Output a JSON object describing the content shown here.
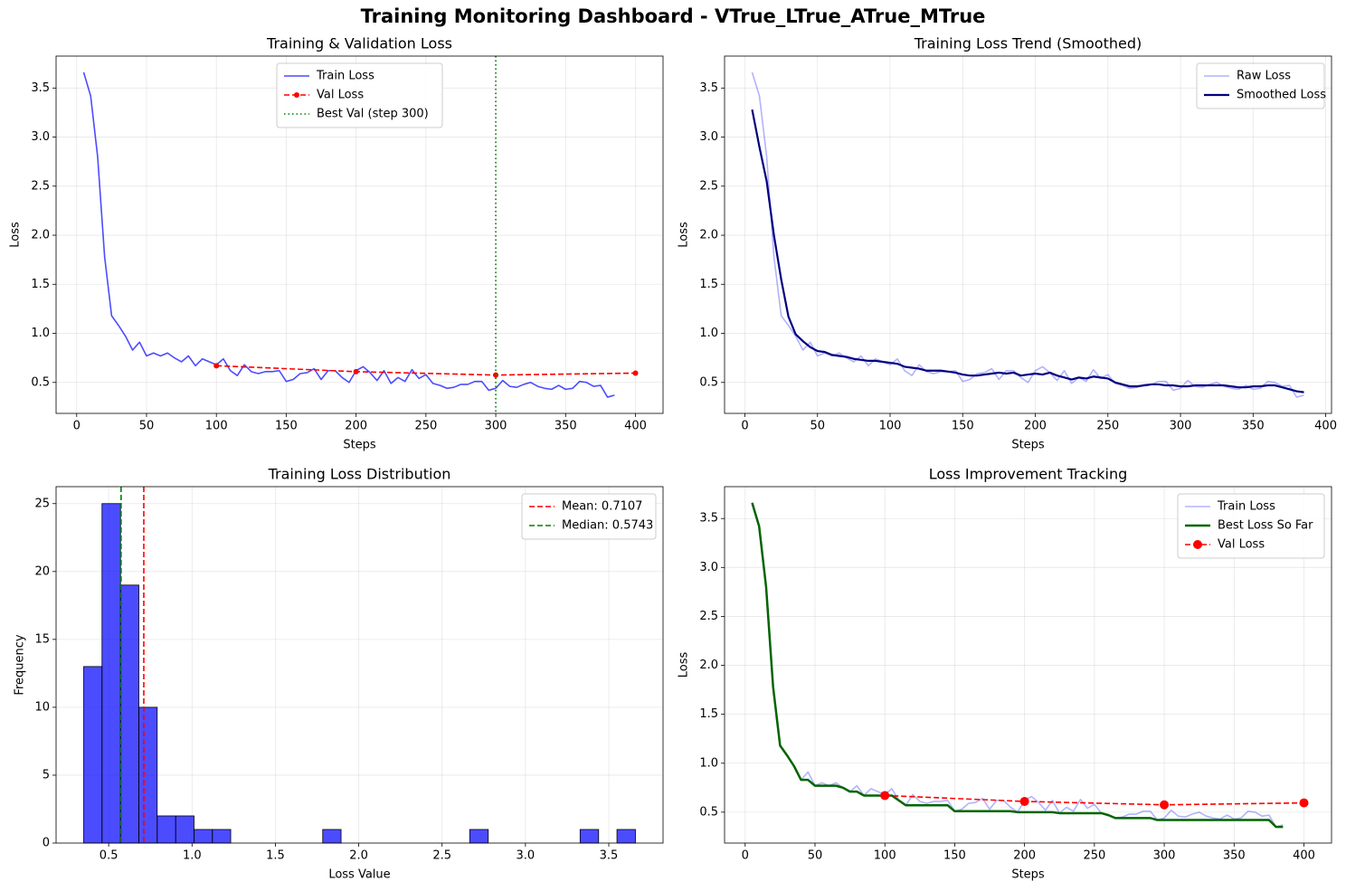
{
  "title": "Training Monitoring Dashboard - VTrue_LTrue_ATrue_MTrue",
  "chart_data": [
    {
      "type": "line",
      "title": "Training & Validation Loss",
      "xlabel": "Steps",
      "ylabel": "Loss",
      "x": [
        5,
        10,
        15,
        20,
        25,
        30,
        35,
        40,
        45,
        50,
        55,
        60,
        65,
        70,
        75,
        80,
        85,
        90,
        95,
        100,
        105,
        110,
        115,
        120,
        125,
        130,
        135,
        140,
        145,
        150,
        155,
        160,
        165,
        170,
        175,
        180,
        185,
        190,
        195,
        200,
        205,
        210,
        215,
        220,
        225,
        230,
        235,
        240,
        245,
        250,
        255,
        260,
        265,
        270,
        275,
        280,
        285,
        290,
        295,
        300,
        305,
        310,
        315,
        320,
        325,
        330,
        335,
        340,
        345,
        350,
        355,
        360,
        365,
        370,
        375,
        380,
        385
      ],
      "series": [
        {
          "name": "Train Loss",
          "color": "#0000ff",
          "alpha": 0.7,
          "style": "solid",
          "values": [
            3.66,
            3.42,
            2.8,
            1.78,
            1.18,
            1.08,
            0.97,
            0.83,
            0.91,
            0.77,
            0.8,
            0.77,
            0.8,
            0.75,
            0.71,
            0.77,
            0.67,
            0.74,
            0.71,
            0.68,
            0.74,
            0.62,
            0.57,
            0.68,
            0.61,
            0.59,
            0.61,
            0.61,
            0.62,
            0.51,
            0.53,
            0.59,
            0.6,
            0.64,
            0.53,
            0.62,
            0.62,
            0.55,
            0.5,
            0.62,
            0.66,
            0.6,
            0.52,
            0.62,
            0.49,
            0.55,
            0.51,
            0.63,
            0.54,
            0.58,
            0.49,
            0.47,
            0.44,
            0.45,
            0.48,
            0.48,
            0.51,
            0.51,
            0.42,
            0.44,
            0.52,
            0.46,
            0.45,
            0.48,
            0.5,
            0.46,
            0.44,
            0.43,
            0.47,
            0.43,
            0.44,
            0.51,
            0.5,
            0.46,
            0.47,
            0.35,
            0.37
          ]
        },
        {
          "name": "Val Loss",
          "color": "#ff0000",
          "style": "dashed",
          "marker": "o",
          "marker_size": 3,
          "x": [
            100,
            200,
            300,
            400
          ],
          "values": [
            0.67,
            0.61,
            0.575,
            0.595
          ]
        }
      ],
      "vlines": [
        {
          "value": 300,
          "label": "Best Val (step 300)",
          "color": "#008000",
          "style": "dotted"
        }
      ],
      "xlim": [
        -14.75,
        419.75
      ],
      "xticks": [
        0,
        50,
        100,
        150,
        200,
        250,
        300,
        350,
        400
      ],
      "ylim": [
        0.1845,
        3.8255
      ],
      "yticks": [
        0.5,
        {
          "value": 1,
          "label": "1.0"
        },
        1.5,
        {
          "value": 2,
          "label": "2.0"
        },
        2.5,
        {
          "value": 3,
          "label": "3.0"
        },
        3.5
      ],
      "grid": true,
      "legend": "upper center"
    },
    {
      "type": "line",
      "title": "Training Loss Trend (Smoothed)",
      "xlabel": "Steps",
      "ylabel": "Loss",
      "x": [
        5,
        10,
        15,
        20,
        25,
        30,
        35,
        40,
        45,
        50,
        55,
        60,
        65,
        70,
        75,
        80,
        85,
        90,
        95,
        100,
        105,
        110,
        115,
        120,
        125,
        130,
        135,
        140,
        145,
        150,
        155,
        160,
        165,
        170,
        175,
        180,
        185,
        190,
        195,
        200,
        205,
        210,
        215,
        220,
        225,
        230,
        235,
        240,
        245,
        250,
        255,
        260,
        265,
        270,
        275,
        280,
        285,
        290,
        295,
        300,
        305,
        310,
        315,
        320,
        325,
        330,
        335,
        340,
        345,
        350,
        355,
        360,
        365,
        370,
        375,
        380,
        385
      ],
      "series": [
        {
          "name": "Raw Loss",
          "color": "#0000ff",
          "alpha": 0.3,
          "style": "solid",
          "values": [
            3.66,
            3.42,
            2.8,
            1.78,
            1.18,
            1.08,
            0.97,
            0.83,
            0.91,
            0.77,
            0.8,
            0.77,
            0.8,
            0.75,
            0.71,
            0.77,
            0.67,
            0.74,
            0.71,
            0.68,
            0.74,
            0.62,
            0.57,
            0.68,
            0.61,
            0.59,
            0.61,
            0.61,
            0.62,
            0.51,
            0.53,
            0.59,
            0.6,
            0.64,
            0.53,
            0.62,
            0.62,
            0.55,
            0.5,
            0.62,
            0.66,
            0.6,
            0.52,
            0.62,
            0.49,
            0.55,
            0.51,
            0.63,
            0.54,
            0.58,
            0.49,
            0.47,
            0.44,
            0.45,
            0.48,
            0.48,
            0.51,
            0.51,
            0.42,
            0.44,
            0.52,
            0.46,
            0.45,
            0.48,
            0.5,
            0.46,
            0.44,
            0.43,
            0.47,
            0.43,
            0.44,
            0.51,
            0.5,
            0.46,
            0.47,
            0.35,
            0.37
          ]
        },
        {
          "name": "Smoothed Loss",
          "color": "#000080",
          "width": 2.2,
          "style": "solid",
          "values": [
            3.28,
            2.9,
            2.55,
            2.0,
            1.55,
            1.17,
            0.99,
            0.92,
            0.86,
            0.82,
            0.81,
            0.78,
            0.77,
            0.76,
            0.74,
            0.73,
            0.72,
            0.72,
            0.71,
            0.7,
            0.69,
            0.66,
            0.65,
            0.64,
            0.62,
            0.62,
            0.62,
            0.61,
            0.6,
            0.58,
            0.57,
            0.57,
            0.58,
            0.59,
            0.6,
            0.59,
            0.6,
            0.57,
            0.58,
            0.59,
            0.58,
            0.6,
            0.57,
            0.55,
            0.53,
            0.55,
            0.54,
            0.56,
            0.55,
            0.54,
            0.5,
            0.48,
            0.46,
            0.46,
            0.47,
            0.48,
            0.48,
            0.47,
            0.47,
            0.46,
            0.46,
            0.47,
            0.47,
            0.47,
            0.47,
            0.47,
            0.46,
            0.45,
            0.45,
            0.46,
            0.46,
            0.47,
            0.47,
            0.45,
            0.43,
            0.41,
            0.4
          ]
        }
      ],
      "xlim": [
        -14,
        404
      ],
      "xticks": [
        0,
        50,
        100,
        150,
        200,
        250,
        300,
        350,
        400
      ],
      "ylim": [
        0.1845,
        3.8255
      ],
      "yticks": [
        0.5,
        {
          "value": 1,
          "label": "1.0"
        },
        1.5,
        {
          "value": 2,
          "label": "2.0"
        },
        2.5,
        {
          "value": 3,
          "label": "3.0"
        },
        3.5
      ],
      "grid": true,
      "legend": "upper right"
    },
    {
      "type": "histogram",
      "title": "Training Loss Distribution",
      "xlabel": "Loss Value",
      "ylabel": "Frequency",
      "bins": [
        0.35,
        0.46,
        0.571,
        0.681,
        0.791,
        0.902,
        1.012,
        1.122,
        1.232,
        1.343,
        1.453,
        1.563,
        1.674,
        1.784,
        1.894,
        2.005,
        2.115,
        2.225,
        2.336,
        2.446,
        2.556,
        2.666,
        2.777,
        2.887,
        2.997,
        3.108,
        3.218,
        3.328,
        3.439,
        3.549,
        3.66
      ],
      "values": [
        13,
        25,
        19,
        10,
        2,
        2,
        1,
        1,
        0,
        0,
        0,
        0,
        0,
        1,
        0,
        0,
        0,
        0,
        0,
        0,
        0,
        1,
        0,
        0,
        0,
        0,
        0,
        1,
        0,
        1
      ],
      "color": "#0000ff",
      "alpha": 0.7,
      "edgecolor": "#000000",
      "vlines": [
        {
          "value": 0.7107,
          "label": "Mean: 0.7107",
          "color": "#ff0000",
          "style": "dashed"
        },
        {
          "value": 0.5743,
          "label": "Median: 0.5743",
          "color": "#008000",
          "style": "dashed"
        }
      ],
      "xlim": [
        0.1845,
        3.8255
      ],
      "xticks": [
        0.5,
        {
          "value": 1,
          "label": "1.0"
        },
        1.5,
        {
          "value": 2,
          "label": "2.0"
        },
        2.5,
        {
          "value": 3,
          "label": "3.0"
        },
        3.5
      ],
      "ylim": [
        0,
        26.25
      ],
      "yticks": [
        0,
        5,
        10,
        15,
        20,
        25
      ],
      "grid": true,
      "legend": "upper right"
    },
    {
      "type": "line",
      "title": "Loss Improvement Tracking",
      "xlabel": "Steps",
      "ylabel": "Loss",
      "x": [
        5,
        10,
        15,
        20,
        25,
        30,
        35,
        40,
        45,
        50,
        55,
        60,
        65,
        70,
        75,
        80,
        85,
        90,
        95,
        100,
        105,
        110,
        115,
        120,
        125,
        130,
        135,
        140,
        145,
        150,
        155,
        160,
        165,
        170,
        175,
        180,
        185,
        190,
        195,
        200,
        205,
        210,
        215,
        220,
        225,
        230,
        235,
        240,
        245,
        250,
        255,
        260,
        265,
        270,
        275,
        280,
        285,
        290,
        295,
        300,
        305,
        310,
        315,
        320,
        325,
        330,
        335,
        340,
        345,
        350,
        355,
        360,
        365,
        370,
        375,
        380,
        385
      ],
      "series": [
        {
          "name": "Train Loss",
          "color": "#0000ff",
          "alpha": 0.3,
          "style": "solid",
          "values": [
            3.66,
            3.42,
            2.8,
            1.78,
            1.18,
            1.08,
            0.97,
            0.83,
            0.91,
            0.77,
            0.8,
            0.77,
            0.8,
            0.75,
            0.71,
            0.77,
            0.67,
            0.74,
            0.71,
            0.68,
            0.74,
            0.62,
            0.57,
            0.68,
            0.61,
            0.59,
            0.61,
            0.61,
            0.62,
            0.51,
            0.53,
            0.59,
            0.6,
            0.64,
            0.53,
            0.62,
            0.62,
            0.55,
            0.5,
            0.62,
            0.66,
            0.6,
            0.52,
            0.62,
            0.49,
            0.55,
            0.51,
            0.63,
            0.54,
            0.58,
            0.49,
            0.47,
            0.44,
            0.45,
            0.48,
            0.48,
            0.51,
            0.51,
            0.42,
            0.44,
            0.52,
            0.46,
            0.45,
            0.48,
            0.5,
            0.46,
            0.44,
            0.43,
            0.47,
            0.43,
            0.44,
            0.51,
            0.5,
            0.46,
            0.47,
            0.35,
            0.37
          ]
        },
        {
          "name": "Best Loss So Far",
          "color": "#006400",
          "width": 2.5,
          "style": "solid",
          "values": [
            3.66,
            3.42,
            2.8,
            1.78,
            1.18,
            1.08,
            0.97,
            0.83,
            0.83,
            0.77,
            0.77,
            0.77,
            0.77,
            0.75,
            0.71,
            0.71,
            0.67,
            0.67,
            0.67,
            0.67,
            0.67,
            0.62,
            0.57,
            0.57,
            0.57,
            0.57,
            0.57,
            0.57,
            0.57,
            0.51,
            0.51,
            0.51,
            0.51,
            0.51,
            0.51,
            0.51,
            0.51,
            0.51,
            0.5,
            0.5,
            0.5,
            0.5,
            0.5,
            0.5,
            0.49,
            0.49,
            0.49,
            0.49,
            0.49,
            0.49,
            0.49,
            0.47,
            0.44,
            0.44,
            0.44,
            0.44,
            0.44,
            0.44,
            0.42,
            0.42,
            0.42,
            0.42,
            0.42,
            0.42,
            0.42,
            0.42,
            0.42,
            0.42,
            0.42,
            0.42,
            0.42,
            0.42,
            0.42,
            0.42,
            0.42,
            0.35,
            0.35
          ]
        },
        {
          "name": "Val Loss",
          "color": "#ff0000",
          "style": "dashed",
          "marker": "o",
          "marker_size": 5,
          "x": [
            100,
            200,
            300,
            400
          ],
          "values": [
            0.67,
            0.61,
            0.575,
            0.595
          ]
        }
      ],
      "xlim": [
        -14.75,
        419.75
      ],
      "xticks": [
        0,
        50,
        100,
        150,
        200,
        250,
        300,
        350,
        400
      ],
      "ylim": [
        0.1845,
        3.8255
      ],
      "yticks": [
        0.5,
        {
          "value": 1,
          "label": "1.0"
        },
        1.5,
        {
          "value": 2,
          "label": "2.0"
        },
        2.5,
        {
          "value": 3,
          "label": "3.0"
        },
        3.5
      ],
      "grid": true,
      "legend": "upper right"
    }
  ]
}
